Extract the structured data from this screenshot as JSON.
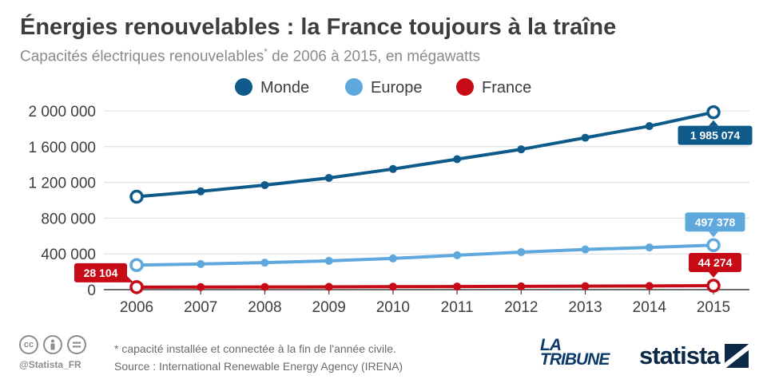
{
  "chart_data": {
    "type": "line",
    "title": "Énergies renouvelables : la France toujours à la traîne",
    "subtitle_main": "Capacités électriques renouvelables",
    "subtitle_mark": "*",
    "subtitle_tail": " de 2006 à 2015, en mégawatts",
    "categories": [
      "2006",
      "2007",
      "2008",
      "2009",
      "2010",
      "2011",
      "2012",
      "2013",
      "2014",
      "2015"
    ],
    "ylim": [
      0,
      2000000
    ],
    "yticks": [
      0,
      400000,
      800000,
      1200000,
      1600000,
      2000000
    ],
    "ytick_labels": [
      "0",
      "400 000",
      "800 000",
      "1 200 000",
      "1 600 000",
      "2 000 000"
    ],
    "legend_position": "top-center",
    "series": [
      {
        "name": "Monde",
        "color": "#0e5a8a",
        "values": [
          1040000,
          1100000,
          1170000,
          1250000,
          1350000,
          1460000,
          1570000,
          1700000,
          1830000,
          1985074
        ],
        "annotations": [
          {
            "index": 9,
            "label": "1 985 074",
            "placement": "below"
          }
        ]
      },
      {
        "name": "Europe",
        "color": "#5ea8dd",
        "values": [
          275000,
          287000,
          302000,
          322000,
          349000,
          385000,
          420000,
          450000,
          472000,
          497378
        ],
        "annotations": [
          {
            "index": 9,
            "label": "497 378",
            "placement": "above"
          }
        ]
      },
      {
        "name": "France",
        "color": "#c60a16",
        "values": [
          28104,
          29000,
          30000,
          31000,
          33000,
          35000,
          37000,
          39000,
          41500,
          44274
        ],
        "annotations": [
          {
            "index": 0,
            "label": "28 104",
            "placement": "above-left"
          },
          {
            "index": 9,
            "label": "44 274",
            "placement": "above"
          }
        ]
      }
    ]
  },
  "footer": {
    "note": "* capacité installée et connectée à la fin de l'année civile.",
    "source": "Source : International Renewable Energy Agency  (IRENA)",
    "handle": "@Statista_FR",
    "brand_tribune_line1": "LA",
    "brand_tribune_line2": "TRIBUNE",
    "brand_statista": "statista"
  },
  "icons": [
    "cc-icon",
    "by-person-icon",
    "equals-icon"
  ]
}
